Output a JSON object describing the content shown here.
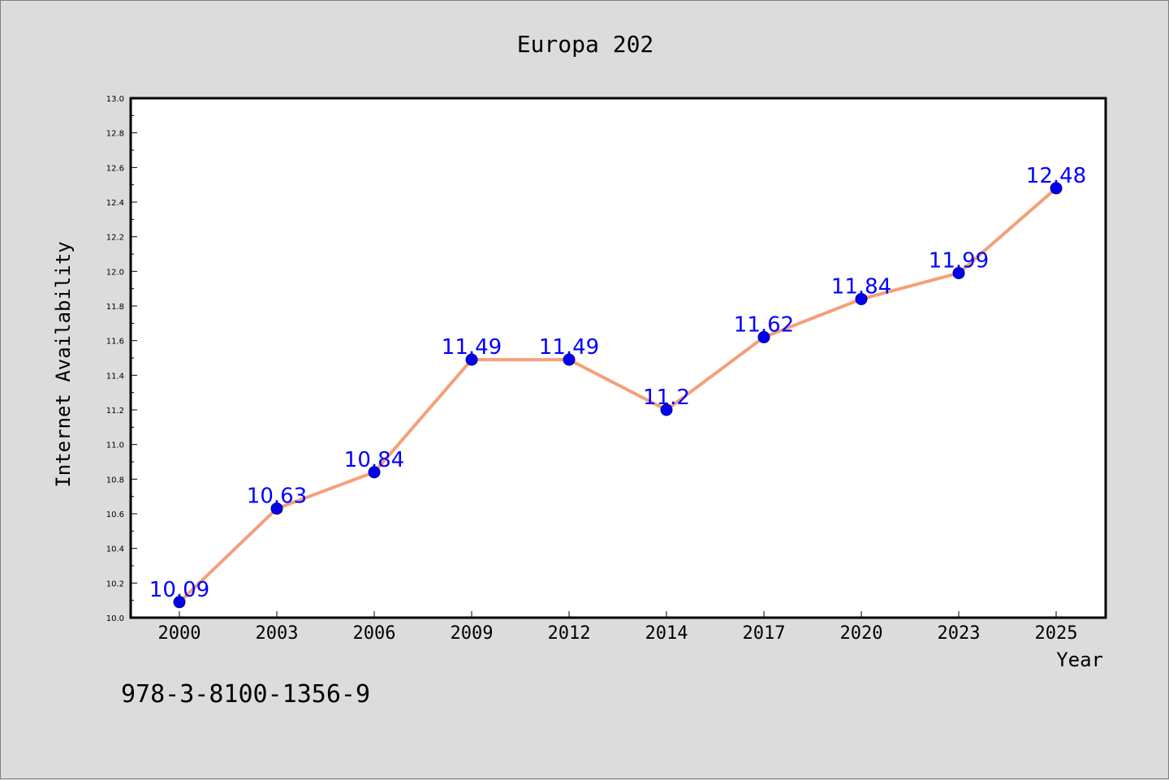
{
  "chart_data": {
    "type": "line",
    "title": "Europa 202",
    "xlabel": "Year",
    "ylabel": "Internet Availability",
    "categories": [
      "2000",
      "2003",
      "2006",
      "2009",
      "2012",
      "2014",
      "2017",
      "2020",
      "2023",
      "2025"
    ],
    "series": [
      {
        "values": [
          10.09,
          10.63,
          10.84,
          11.49,
          11.49,
          11.2,
          11.62,
          11.84,
          11.99,
          12.48
        ],
        "line_color": "#f4a07a",
        "marker_color": "#0000ee"
      }
    ],
    "data_labels": [
      "10.09",
      "10.63",
      "10.84",
      "11.49",
      "11.49",
      "11.2",
      "11.62",
      "11.84",
      "11.99",
      "12.48"
    ],
    "ylim": [
      10.0,
      13.0
    ],
    "yticks": [
      "10.0",
      "10.2",
      "10.4",
      "10.6",
      "10.8",
      "11.0",
      "11.2",
      "11.4",
      "11.6",
      "11.8",
      "12.0",
      "12.2",
      "12.4",
      "12.6",
      "12.8",
      "13.0"
    ],
    "grid": false,
    "legend": "none",
    "label_color": "#0000ff"
  },
  "footer": {
    "isbn": "978-3-8100-1356-9"
  }
}
